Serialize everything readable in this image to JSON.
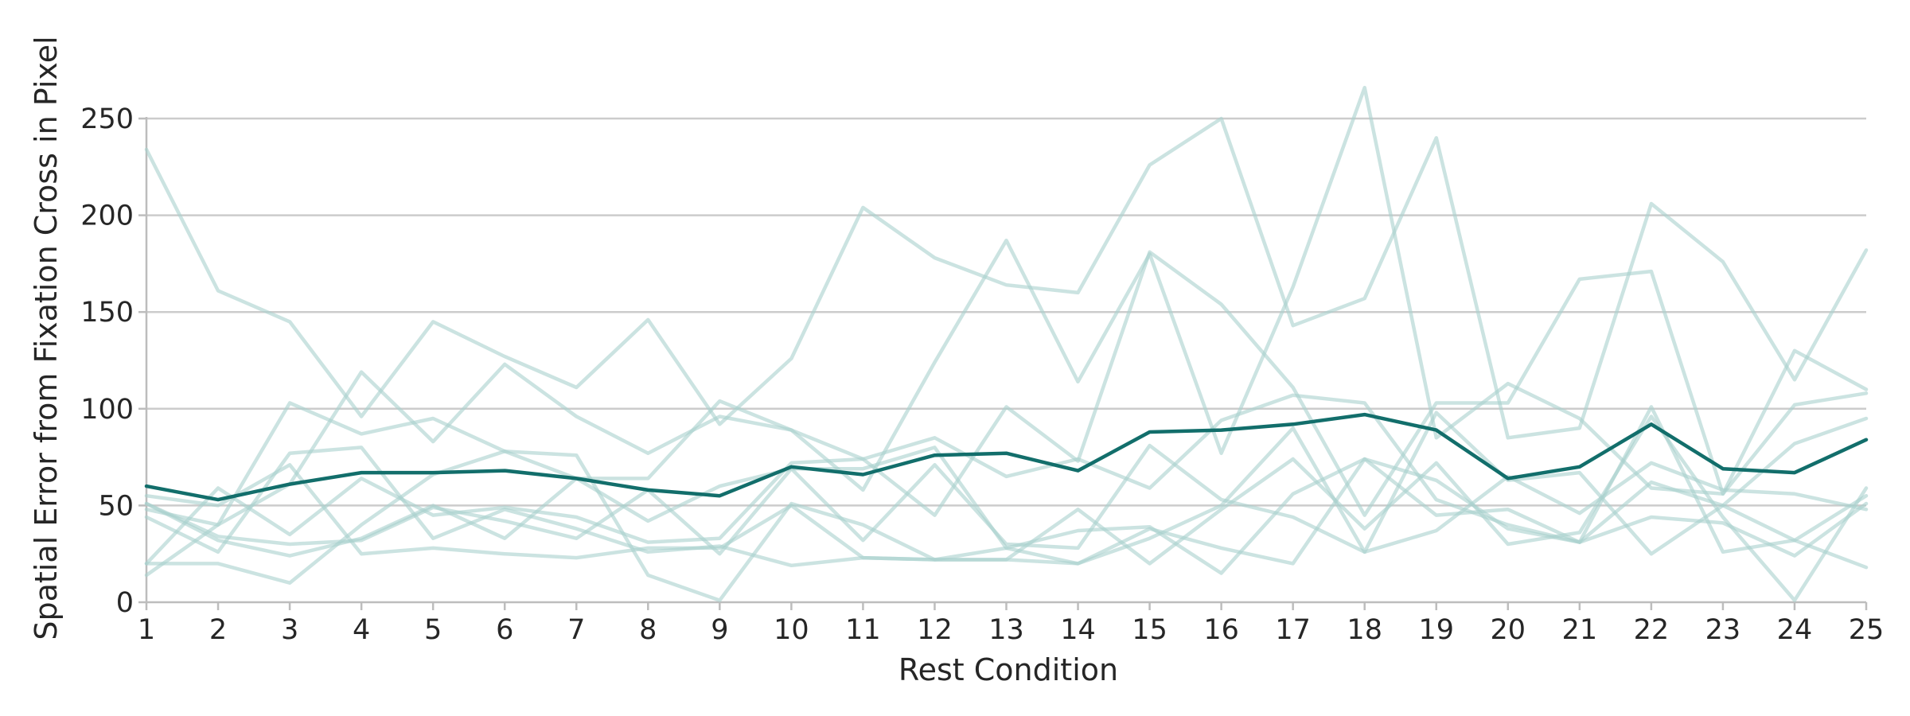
{
  "chart_data": {
    "type": "line",
    "title": "",
    "xlabel": "Rest Condition",
    "ylabel": "Spatial Error from Fixation Cross in Pixel",
    "x": [
      1,
      2,
      3,
      4,
      5,
      6,
      7,
      8,
      9,
      10,
      11,
      12,
      13,
      14,
      15,
      16,
      17,
      18,
      19,
      20,
      21,
      22,
      23,
      24,
      25
    ],
    "xlim": [
      1,
      25
    ],
    "ylim": [
      0,
      265
    ],
    "yticks": [
      0,
      50,
      100,
      150,
      200,
      250
    ],
    "grid": "horizontal",
    "colors": {
      "accent": "#126e6b",
      "faded": "#a9d1cd"
    },
    "series": [
      {
        "role": "individual",
        "values": [
          234,
          161,
          145,
          96,
          145,
          127,
          111,
          146,
          92,
          126,
          204,
          178,
          164,
          160,
          226,
          250,
          143,
          157,
          240,
          85,
          90,
          206,
          176,
          115,
          182
        ]
      },
      {
        "role": "individual",
        "values": [
          48,
          40,
          61,
          119,
          83,
          123,
          96,
          77,
          96,
          89,
          74,
          45,
          101,
          73,
          181,
          154,
          111,
          45,
          103,
          103,
          167,
          171,
          56,
          130,
          110
        ]
      },
      {
        "role": "individual",
        "values": [
          14,
          40,
          103,
          87,
          95,
          78,
          64,
          64,
          104,
          89,
          58,
          124,
          187,
          114,
          180,
          77,
          163,
          266,
          85,
          113,
          95,
          59,
          56,
          102,
          108
        ]
      },
      {
        "role": "individual",
        "values": [
          20,
          59,
          35,
          64,
          45,
          49,
          44,
          31,
          33,
          72,
          74,
          85,
          65,
          74,
          59,
          94,
          107,
          103,
          53,
          40,
          31,
          101,
          26,
          32,
          18
        ]
      },
      {
        "role": "individual",
        "values": [
          20,
          20,
          10,
          40,
          66,
          78,
          76,
          14,
          1,
          51,
          40,
          22,
          22,
          48,
          20,
          48,
          74,
          38,
          72,
          30,
          36,
          96,
          44,
          1,
          59
        ]
      },
      {
        "role": "individual",
        "values": [
          44,
          26,
          77,
          80,
          33,
          48,
          38,
          26,
          29,
          19,
          23,
          22,
          28,
          37,
          39,
          15,
          56,
          74,
          45,
          48,
          31,
          44,
          41,
          24,
          51
        ]
      },
      {
        "role": "individual",
        "values": [
          55,
          50,
          71,
          25,
          28,
          25,
          23,
          28,
          28,
          50,
          23,
          22,
          22,
          20,
          38,
          28,
          20,
          74,
          63,
          38,
          31,
          62,
          50,
          82,
          95
        ]
      },
      {
        "role": "individual",
        "values": [
          51,
          34,
          30,
          32,
          49,
          42,
          33,
          58,
          25,
          69,
          32,
          71,
          30,
          28,
          81,
          53,
          44,
          26,
          37,
          65,
          46,
          72,
          58,
          56,
          48
        ]
      },
      {
        "role": "individual",
        "values": [
          51,
          32,
          24,
          33,
          50,
          33,
          64,
          42,
          60,
          69,
          69,
          80,
          28,
          20,
          33,
          50,
          90,
          26,
          98,
          63,
          67,
          25,
          50,
          32,
          55
        ]
      },
      {
        "role": "mean",
        "values": [
          60,
          53,
          61,
          67,
          67,
          68,
          64,
          58,
          55,
          70,
          66,
          76,
          77,
          68,
          88,
          89,
          92,
          97,
          89,
          64,
          70,
          92,
          69,
          67,
          84
        ]
      }
    ]
  }
}
